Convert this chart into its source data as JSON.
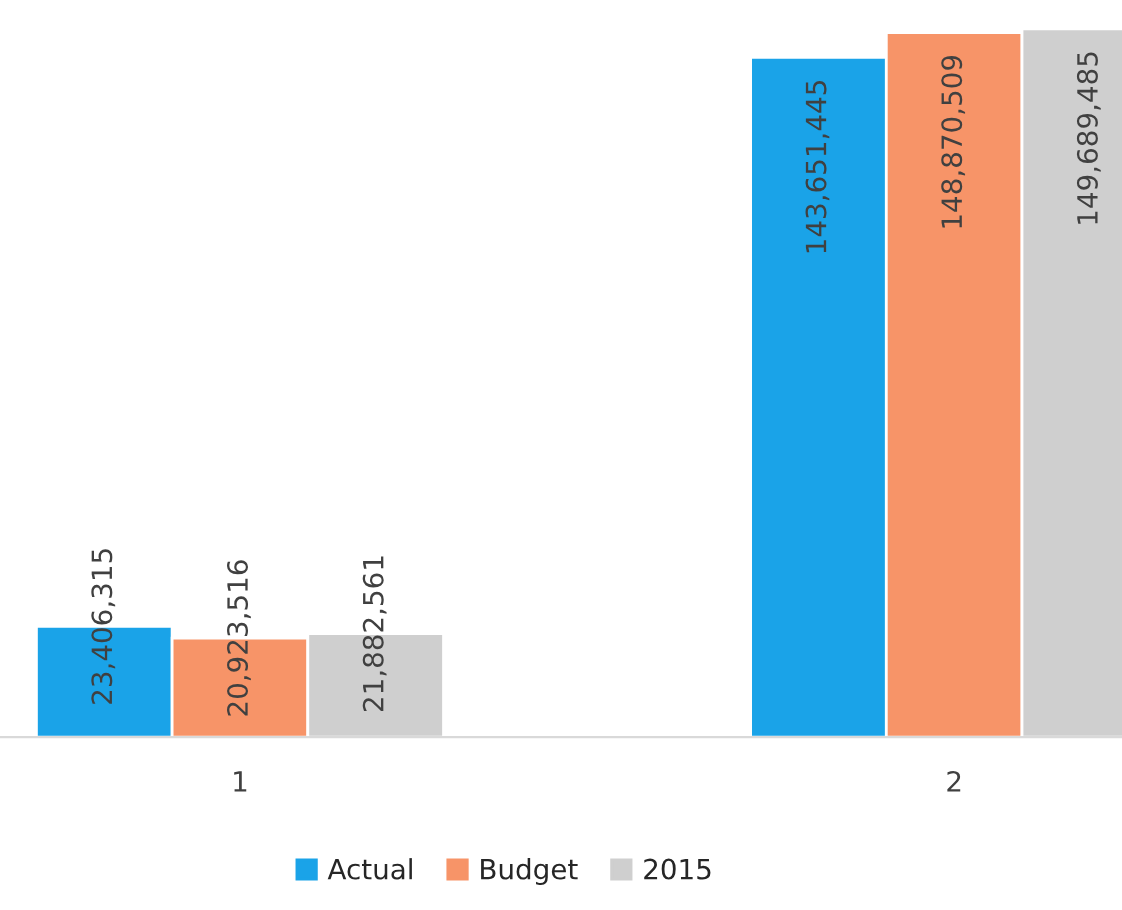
{
  "chart_data": {
    "type": "bar",
    "categories": [
      "1",
      "2"
    ],
    "legend": "bottom",
    "series": [
      {
        "name": "Actual",
        "color": "#1aa3e8",
        "values": [
          23406315,
          143651445
        ],
        "value_labels": [
          "23,406,315",
          "143,651,445"
        ]
      },
      {
        "name": "Budget",
        "color": "#f79468",
        "values": [
          20923516,
          148870509
        ],
        "value_labels": [
          "20,923,516",
          "148,870,509"
        ]
      },
      {
        "name": "2015",
        "color": "#cfcfcf",
        "values": [
          21882561,
          149689485
        ],
        "value_labels": [
          "21,882,561",
          "149,689,485"
        ]
      }
    ]
  }
}
